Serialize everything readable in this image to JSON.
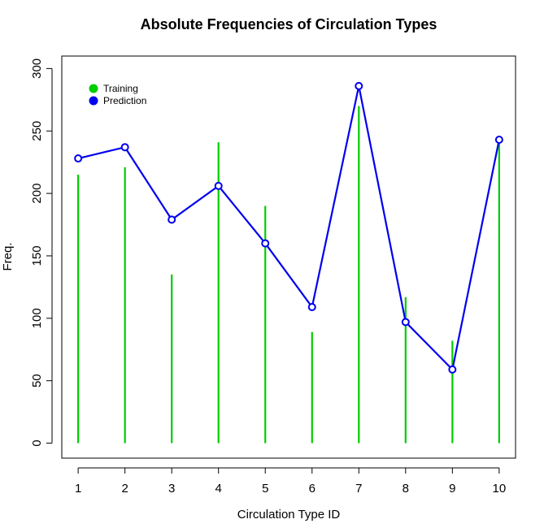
{
  "chart_data": {
    "type": "bar",
    "title": "Absolute Frequencies of Circulation Types",
    "xlabel": "Circulation Type ID",
    "ylabel": "Freq.",
    "categories": [
      "1",
      "2",
      "3",
      "4",
      "5",
      "6",
      "7",
      "8",
      "9",
      "10"
    ],
    "x": [
      1,
      2,
      3,
      4,
      5,
      6,
      7,
      8,
      9,
      10
    ],
    "xlim": [
      0.65,
      10.35
    ],
    "ylim": [
      -12,
      310
    ],
    "yticks": [
      0,
      50,
      100,
      150,
      200,
      250,
      300
    ],
    "grid": false,
    "legend_position": "top-left",
    "series": [
      {
        "name": "Training",
        "kind": "vertical-lines",
        "color": "#00cd00",
        "values": [
          215,
          221,
          135,
          241,
          190,
          89,
          270,
          117,
          82,
          245
        ]
      },
      {
        "name": "Prediction",
        "kind": "line-with-points",
        "color": "#0000ee",
        "values": [
          228,
          237,
          179,
          206,
          160,
          109,
          286,
          97,
          59,
          243
        ]
      }
    ]
  }
}
